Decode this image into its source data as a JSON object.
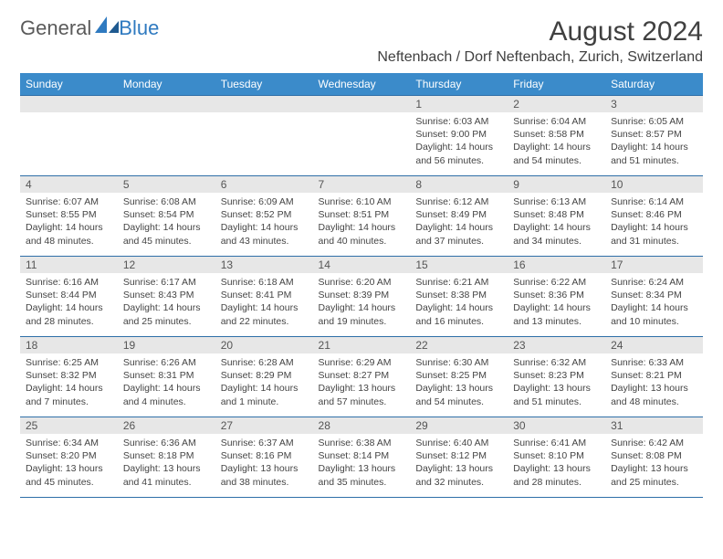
{
  "logo": {
    "part1": "General",
    "part2": "Blue"
  },
  "title": "August 2024",
  "location": "Neftenbach / Dorf Neftenbach, Zurich, Switzerland",
  "weekdays": [
    "Sunday",
    "Monday",
    "Tuesday",
    "Wednesday",
    "Thursday",
    "Friday",
    "Saturday"
  ],
  "colors": {
    "header_bg": "#3b8bca",
    "header_text": "#ffffff",
    "border": "#2f6fa8",
    "daynum_bg": "#e7e7e7",
    "text": "#444444"
  },
  "weeks": [
    [
      null,
      null,
      null,
      null,
      {
        "n": "1",
        "sr": "Sunrise: 6:03 AM",
        "ss": "Sunset: 9:00 PM",
        "dl1": "Daylight: 14 hours",
        "dl2": "and 56 minutes."
      },
      {
        "n": "2",
        "sr": "Sunrise: 6:04 AM",
        "ss": "Sunset: 8:58 PM",
        "dl1": "Daylight: 14 hours",
        "dl2": "and 54 minutes."
      },
      {
        "n": "3",
        "sr": "Sunrise: 6:05 AM",
        "ss": "Sunset: 8:57 PM",
        "dl1": "Daylight: 14 hours",
        "dl2": "and 51 minutes."
      }
    ],
    [
      {
        "n": "4",
        "sr": "Sunrise: 6:07 AM",
        "ss": "Sunset: 8:55 PM",
        "dl1": "Daylight: 14 hours",
        "dl2": "and 48 minutes."
      },
      {
        "n": "5",
        "sr": "Sunrise: 6:08 AM",
        "ss": "Sunset: 8:54 PM",
        "dl1": "Daylight: 14 hours",
        "dl2": "and 45 minutes."
      },
      {
        "n": "6",
        "sr": "Sunrise: 6:09 AM",
        "ss": "Sunset: 8:52 PM",
        "dl1": "Daylight: 14 hours",
        "dl2": "and 43 minutes."
      },
      {
        "n": "7",
        "sr": "Sunrise: 6:10 AM",
        "ss": "Sunset: 8:51 PM",
        "dl1": "Daylight: 14 hours",
        "dl2": "and 40 minutes."
      },
      {
        "n": "8",
        "sr": "Sunrise: 6:12 AM",
        "ss": "Sunset: 8:49 PM",
        "dl1": "Daylight: 14 hours",
        "dl2": "and 37 minutes."
      },
      {
        "n": "9",
        "sr": "Sunrise: 6:13 AM",
        "ss": "Sunset: 8:48 PM",
        "dl1": "Daylight: 14 hours",
        "dl2": "and 34 minutes."
      },
      {
        "n": "10",
        "sr": "Sunrise: 6:14 AM",
        "ss": "Sunset: 8:46 PM",
        "dl1": "Daylight: 14 hours",
        "dl2": "and 31 minutes."
      }
    ],
    [
      {
        "n": "11",
        "sr": "Sunrise: 6:16 AM",
        "ss": "Sunset: 8:44 PM",
        "dl1": "Daylight: 14 hours",
        "dl2": "and 28 minutes."
      },
      {
        "n": "12",
        "sr": "Sunrise: 6:17 AM",
        "ss": "Sunset: 8:43 PM",
        "dl1": "Daylight: 14 hours",
        "dl2": "and 25 minutes."
      },
      {
        "n": "13",
        "sr": "Sunrise: 6:18 AM",
        "ss": "Sunset: 8:41 PM",
        "dl1": "Daylight: 14 hours",
        "dl2": "and 22 minutes."
      },
      {
        "n": "14",
        "sr": "Sunrise: 6:20 AM",
        "ss": "Sunset: 8:39 PM",
        "dl1": "Daylight: 14 hours",
        "dl2": "and 19 minutes."
      },
      {
        "n": "15",
        "sr": "Sunrise: 6:21 AM",
        "ss": "Sunset: 8:38 PM",
        "dl1": "Daylight: 14 hours",
        "dl2": "and 16 minutes."
      },
      {
        "n": "16",
        "sr": "Sunrise: 6:22 AM",
        "ss": "Sunset: 8:36 PM",
        "dl1": "Daylight: 14 hours",
        "dl2": "and 13 minutes."
      },
      {
        "n": "17",
        "sr": "Sunrise: 6:24 AM",
        "ss": "Sunset: 8:34 PM",
        "dl1": "Daylight: 14 hours",
        "dl2": "and 10 minutes."
      }
    ],
    [
      {
        "n": "18",
        "sr": "Sunrise: 6:25 AM",
        "ss": "Sunset: 8:32 PM",
        "dl1": "Daylight: 14 hours",
        "dl2": "and 7 minutes."
      },
      {
        "n": "19",
        "sr": "Sunrise: 6:26 AM",
        "ss": "Sunset: 8:31 PM",
        "dl1": "Daylight: 14 hours",
        "dl2": "and 4 minutes."
      },
      {
        "n": "20",
        "sr": "Sunrise: 6:28 AM",
        "ss": "Sunset: 8:29 PM",
        "dl1": "Daylight: 14 hours",
        "dl2": "and 1 minute."
      },
      {
        "n": "21",
        "sr": "Sunrise: 6:29 AM",
        "ss": "Sunset: 8:27 PM",
        "dl1": "Daylight: 13 hours",
        "dl2": "and 57 minutes."
      },
      {
        "n": "22",
        "sr": "Sunrise: 6:30 AM",
        "ss": "Sunset: 8:25 PM",
        "dl1": "Daylight: 13 hours",
        "dl2": "and 54 minutes."
      },
      {
        "n": "23",
        "sr": "Sunrise: 6:32 AM",
        "ss": "Sunset: 8:23 PM",
        "dl1": "Daylight: 13 hours",
        "dl2": "and 51 minutes."
      },
      {
        "n": "24",
        "sr": "Sunrise: 6:33 AM",
        "ss": "Sunset: 8:21 PM",
        "dl1": "Daylight: 13 hours",
        "dl2": "and 48 minutes."
      }
    ],
    [
      {
        "n": "25",
        "sr": "Sunrise: 6:34 AM",
        "ss": "Sunset: 8:20 PM",
        "dl1": "Daylight: 13 hours",
        "dl2": "and 45 minutes."
      },
      {
        "n": "26",
        "sr": "Sunrise: 6:36 AM",
        "ss": "Sunset: 8:18 PM",
        "dl1": "Daylight: 13 hours",
        "dl2": "and 41 minutes."
      },
      {
        "n": "27",
        "sr": "Sunrise: 6:37 AM",
        "ss": "Sunset: 8:16 PM",
        "dl1": "Daylight: 13 hours",
        "dl2": "and 38 minutes."
      },
      {
        "n": "28",
        "sr": "Sunrise: 6:38 AM",
        "ss": "Sunset: 8:14 PM",
        "dl1": "Daylight: 13 hours",
        "dl2": "and 35 minutes."
      },
      {
        "n": "29",
        "sr": "Sunrise: 6:40 AM",
        "ss": "Sunset: 8:12 PM",
        "dl1": "Daylight: 13 hours",
        "dl2": "and 32 minutes."
      },
      {
        "n": "30",
        "sr": "Sunrise: 6:41 AM",
        "ss": "Sunset: 8:10 PM",
        "dl1": "Daylight: 13 hours",
        "dl2": "and 28 minutes."
      },
      {
        "n": "31",
        "sr": "Sunrise: 6:42 AM",
        "ss": "Sunset: 8:08 PM",
        "dl1": "Daylight: 13 hours",
        "dl2": "and 25 minutes."
      }
    ]
  ]
}
